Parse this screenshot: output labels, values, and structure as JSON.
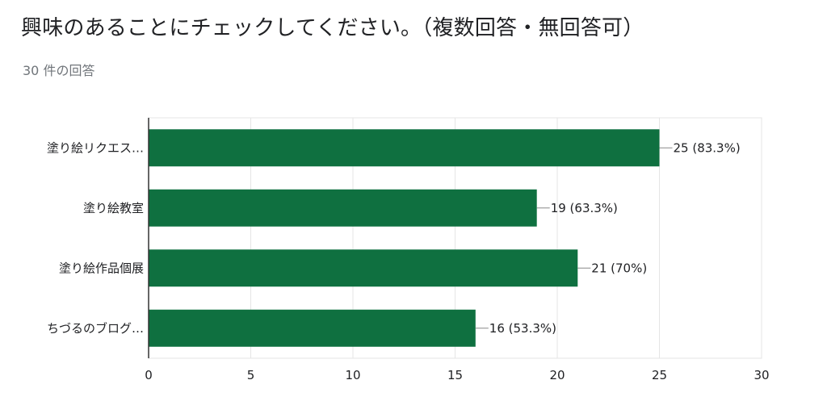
{
  "header": {
    "question": "興味のあることにチェックしてください。（複数回答・無回答可）",
    "response_count": "30 件の回答"
  },
  "chart_data": {
    "type": "bar",
    "orientation": "horizontal",
    "categories": [
      "塗り絵リクエス…",
      "塗り絵教室",
      "塗り絵作品個展",
      "ちづるのブログ…"
    ],
    "values": [
      25,
      19,
      21,
      16
    ],
    "value_labels": [
      "25 (83.3%)",
      "19 (63.3%)",
      "21 (70%)",
      "16 (53.3%)"
    ],
    "xlim": [
      0,
      30
    ],
    "xticks": [
      0,
      5,
      10,
      15,
      20,
      25,
      30
    ],
    "xtick_labels": [
      "0",
      "5",
      "10",
      "15",
      "20",
      "25",
      "30"
    ],
    "grid": true,
    "bar_color": "#0f7040",
    "title": "",
    "xlabel": "",
    "ylabel": ""
  }
}
